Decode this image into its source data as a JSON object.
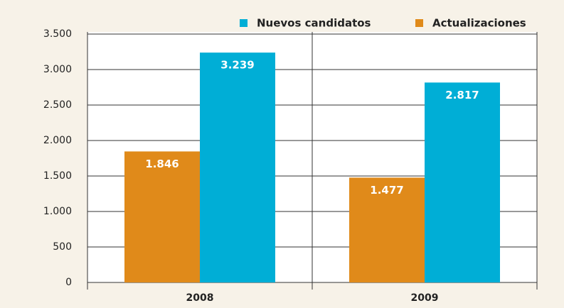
{
  "chart_data": {
    "type": "bar",
    "categories": [
      "2008",
      "2009"
    ],
    "series": [
      {
        "name": "Nuevos candidatos",
        "color": "#00aed6",
        "values": [
          3239,
          2817
        ],
        "value_labels": [
          "3.239",
          "2.817"
        ]
      },
      {
        "name": "Actualizaciones",
        "color": "#e08a1a",
        "values": [
          1846,
          1477
        ],
        "value_labels": [
          "1.846",
          "1.477"
        ]
      }
    ],
    "ylim": [
      0,
      3500
    ],
    "yticks": [
      0,
      500,
      {
        "value": 1000,
        "label": "1.000"
      },
      {
        "value": 1500,
        "label": "1.500"
      },
      {
        "value": 2000,
        "label": "2.000"
      },
      {
        "value": 2500,
        "label": "2.500"
      },
      {
        "value": 3000,
        "label": "3.000"
      },
      {
        "value": 3500,
        "label": "3.500"
      }
    ],
    "grid": true,
    "legend": "top-right"
  }
}
